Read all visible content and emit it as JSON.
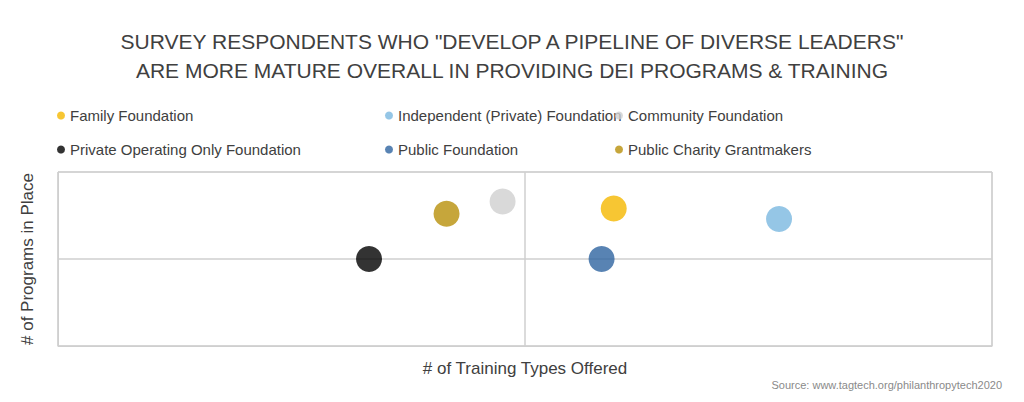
{
  "chart_data": {
    "type": "scatter",
    "title": "SURVEY RESPONDENTS WHO \"DEVELOP A PIPELINE OF DIVERSE LEADERS\"\nARE MORE MATURE OVERALL IN PROVIDING DEI PROGRAMS & TRAINING",
    "x_label": "# of Training Types Offered",
    "y_label": "# of Programs in Place",
    "annotations": [
      "Source: www.tagtech.org/philanthropytech2020"
    ],
    "xlim": [
      0,
      10
    ],
    "xticks": [
      0,
      5,
      10
    ],
    "ylim": [
      0,
      10
    ],
    "yticks": [
      0,
      5,
      10
    ],
    "grid": true,
    "tick_labels": false,
    "legend": "top-left",
    "series": [
      {
        "name": "Family Foundation",
        "color": "#f5b800",
        "x": [
          5.95
        ],
        "values": [
          7.9
        ]
      },
      {
        "name": "Private Operating Only Foundation",
        "color": "#000000",
        "x": [
          3.33
        ],
        "values": [
          5.0
        ]
      },
      {
        "name": "Independent (Private) Foundation",
        "color": "#7ab8e0",
        "x": [
          7.72
        ],
        "values": [
          7.3
        ]
      },
      {
        "name": "Public Foundation",
        "color": "#2e64a0",
        "x": [
          5.82
        ],
        "values": [
          5.0
        ]
      },
      {
        "name": "Community Foundation",
        "color": "#d0d0d0",
        "x": [
          4.76
        ],
        "values": [
          8.3
        ]
      },
      {
        "name": "Public Charity Grantmakers",
        "color": "#b8900a",
        "x": [
          4.16
        ],
        "values": [
          7.6
        ]
      }
    ]
  }
}
